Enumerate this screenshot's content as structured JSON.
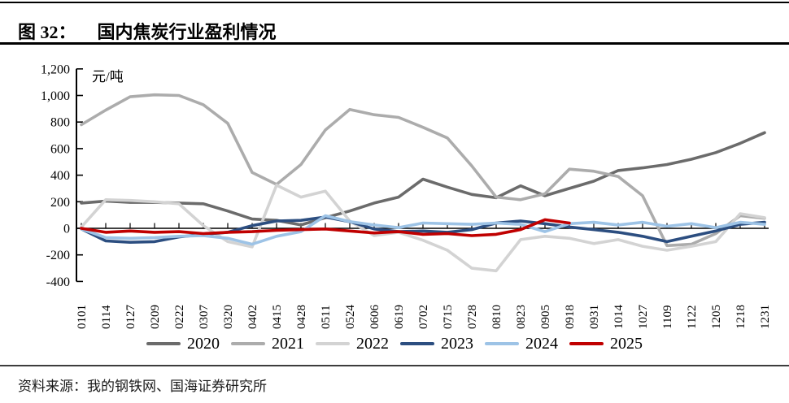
{
  "header": {
    "figure_label": "图 32：",
    "title": "国内焦炭行业盈利情况"
  },
  "chart_data": {
    "type": "line",
    "title": "国内焦炭行业盈利情况",
    "unit_label": "元/吨",
    "xlabel": "",
    "ylabel": "元/吨",
    "ylim": [
      -400,
      1200
    ],
    "ytick_step": 200,
    "ytick_labels": [
      "1,200",
      "1,000",
      "800",
      "600",
      "400",
      "200",
      "0",
      "-200",
      "-400"
    ],
    "grid": false,
    "legend_position": "bottom",
    "categories": [
      "0101",
      "0114",
      "0127",
      "0209",
      "0222",
      "0307",
      "0320",
      "0402",
      "0415",
      "0428",
      "0511",
      "0524",
      "0606",
      "0619",
      "0702",
      "0715",
      "0728",
      "0810",
      "0823",
      "0905",
      "0918",
      "0931",
      "1014",
      "1027",
      "1109",
      "1122",
      "1205",
      "1218",
      "1231"
    ],
    "series": [
      {
        "name": "2020",
        "color": "#6b6b6b",
        "values": [
          190,
          205,
          195,
          195,
          190,
          185,
          130,
          70,
          60,
          25,
          80,
          130,
          190,
          235,
          370,
          310,
          255,
          230,
          320,
          245,
          300,
          355,
          435,
          455,
          480,
          520,
          570,
          640,
          720
        ]
      },
      {
        "name": "2021",
        "color": "#acacac",
        "values": [
          780,
          890,
          990,
          1005,
          1000,
          930,
          790,
          420,
          330,
          480,
          740,
          895,
          855,
          835,
          760,
          680,
          470,
          235,
          215,
          260,
          445,
          430,
          390,
          245,
          -130,
          -120,
          -40,
          95,
          75
        ]
      },
      {
        "name": "2022",
        "color": "#d3d3d3",
        "values": [
          10,
          215,
          210,
          200,
          185,
          20,
          -100,
          -140,
          325,
          235,
          280,
          55,
          -55,
          -30,
          -90,
          -165,
          -300,
          -320,
          -85,
          -60,
          -75,
          -115,
          -85,
          -135,
          -165,
          -135,
          -100,
          110,
          80
        ]
      },
      {
        "name": "2023",
        "color": "#2c4e80",
        "values": [
          -5,
          -95,
          -105,
          -100,
          -65,
          -45,
          -30,
          20,
          55,
          60,
          85,
          50,
          -5,
          -25,
          -20,
          -30,
          -10,
          40,
          55,
          35,
          10,
          -10,
          -30,
          -60,
          -100,
          -60,
          -20,
          30,
          45
        ]
      },
      {
        "name": "2024",
        "color": "#9dc3e6",
        "values": [
          -5,
          -70,
          -75,
          -70,
          -60,
          -55,
          -75,
          -120,
          -60,
          -25,
          95,
          50,
          25,
          5,
          40,
          35,
          30,
          40,
          30,
          -25,
          35,
          45,
          25,
          45,
          15,
          35,
          5,
          45,
          30
        ]
      },
      {
        "name": "2025",
        "color": "#c00000",
        "values": [
          0,
          -30,
          -20,
          -30,
          -25,
          -40,
          -30,
          -25,
          -15,
          -10,
          -5,
          -20,
          -35,
          -25,
          -45,
          -40,
          -55,
          -45,
          -10,
          65,
          40,
          null,
          null,
          null,
          null,
          null,
          null,
          null,
          null
        ]
      }
    ]
  },
  "footer": {
    "source": "资料来源：我的钢铁网、国海证券研究所"
  }
}
